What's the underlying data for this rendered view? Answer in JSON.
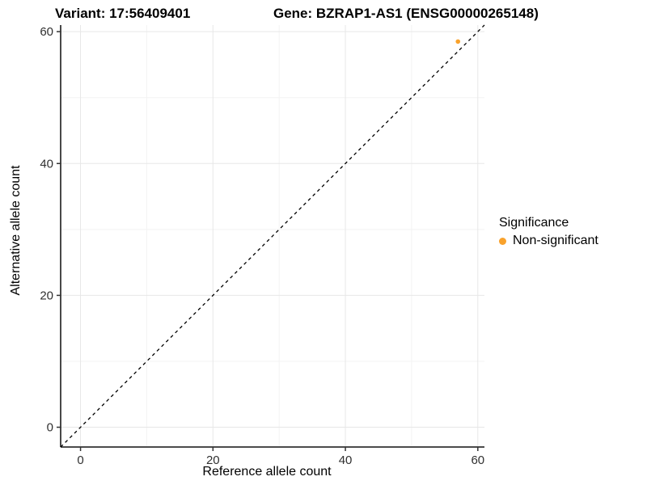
{
  "chart_data": {
    "type": "scatter",
    "titles": {
      "left": "Variant: 17:56409401",
      "right": "Gene: BZRAP1-AS1 (ENSG00000265148)"
    },
    "xlabel": "Reference allele count",
    "ylabel": "Alternative allele count",
    "xlim": [
      -3,
      61
    ],
    "ylim": [
      -3,
      61
    ],
    "x_ticks": [
      0,
      20,
      40,
      60
    ],
    "y_ticks": [
      0,
      20,
      40,
      60
    ],
    "x_minor": [
      10,
      30,
      50
    ],
    "y_minor": [
      10,
      30,
      50
    ],
    "grid": true,
    "points": [
      {
        "x": 57,
        "y": 58.5,
        "series": "Non-significant"
      }
    ],
    "diagonal": {
      "from": [
        -3,
        -3
      ],
      "to": [
        61,
        61
      ],
      "style": "dashed"
    },
    "legend": {
      "title": "Significance",
      "position": "right",
      "items": [
        {
          "label": "Non-significant",
          "color": "#F9A22C"
        }
      ]
    },
    "colors": {
      "point": "#F9A22C",
      "grid_major": "#E7E7E7",
      "grid_minor": "#F3F3F3",
      "axis": "#333333",
      "tick_text": "#303030",
      "dashed_line": "#000000"
    }
  }
}
